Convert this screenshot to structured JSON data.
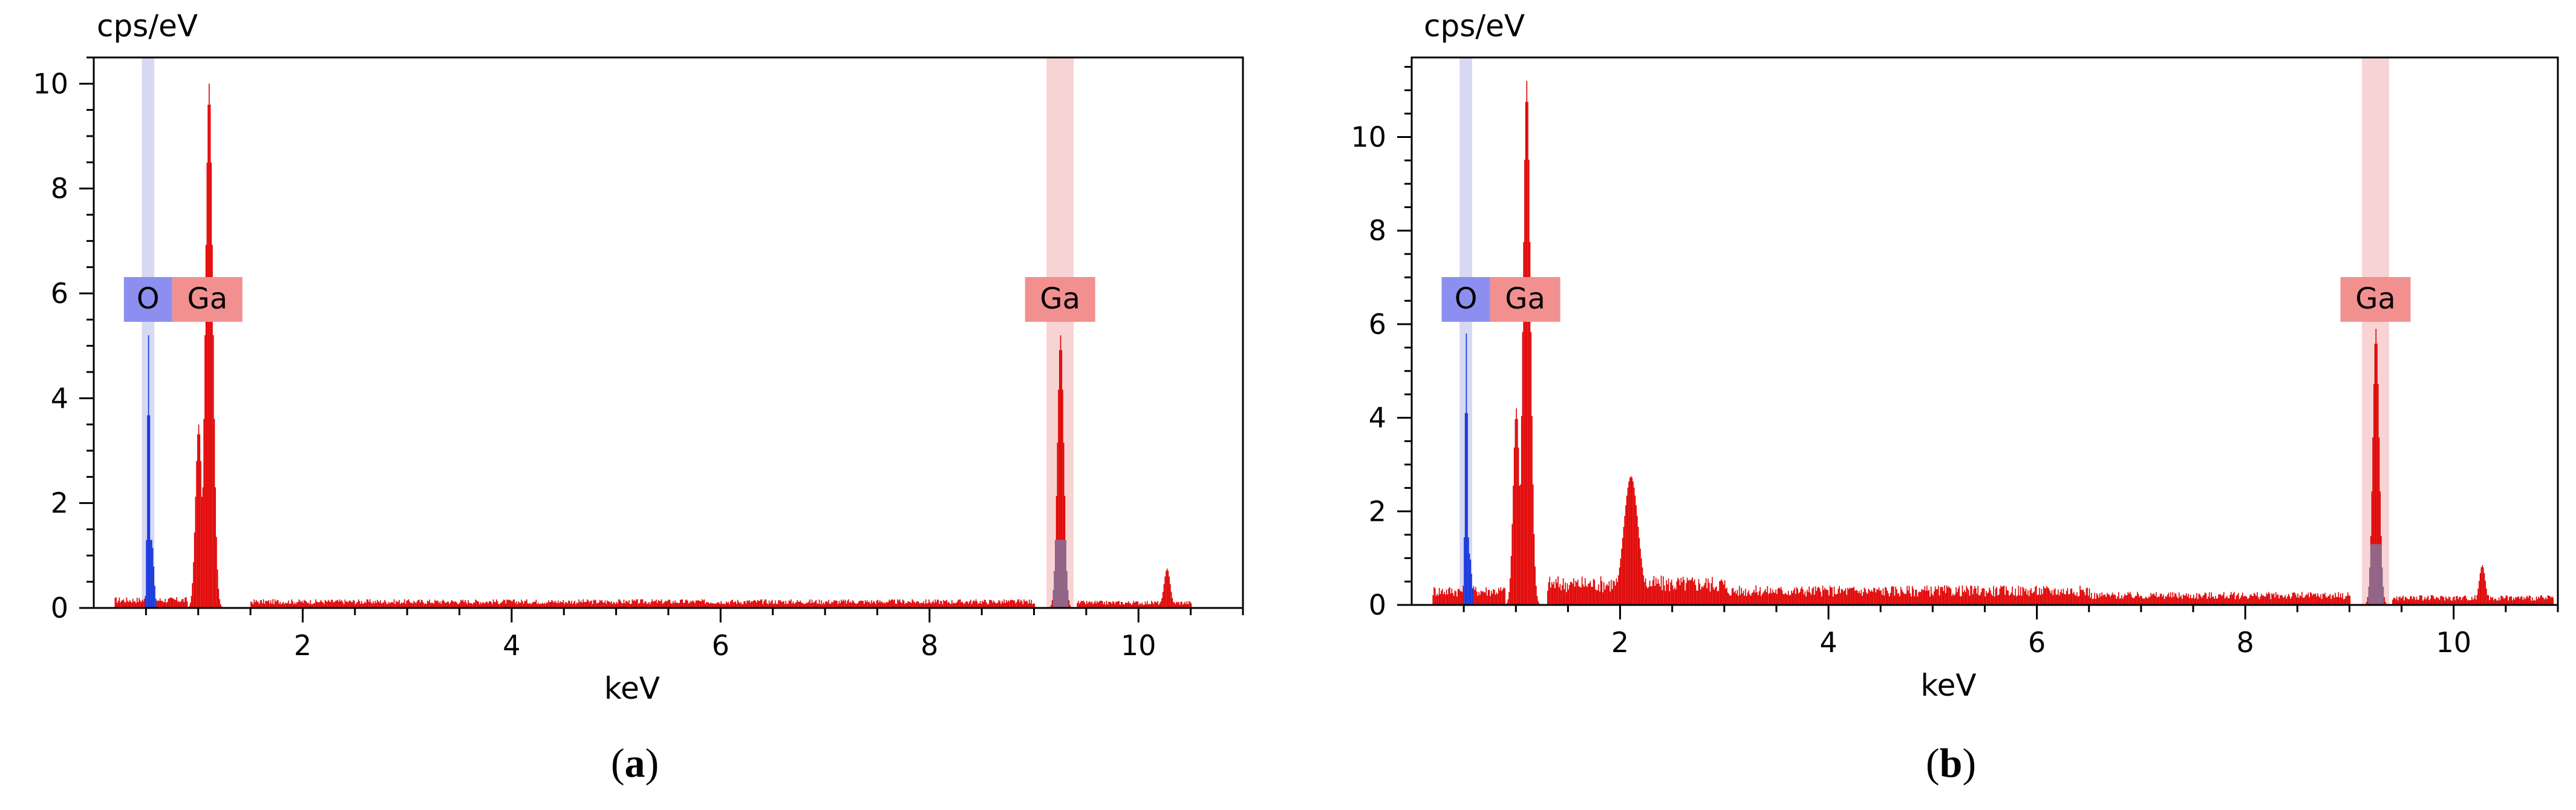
{
  "colors": {
    "sample": "#e00000",
    "overlap": "#7a7ba8",
    "oxygen": "#1133dd",
    "oxygen_label_bg": "#8d8ff0",
    "ga_label_bg": "#f29090",
    "o_band": "#d7d8f2",
    "ga_band": "#f8d3d3"
  },
  "chart_data": [
    {
      "type": "area",
      "panel": "a",
      "ylabel": "cps/eV",
      "xlabel": "keV",
      "caption": "(a)",
      "caption_letter": "a",
      "xlim": [
        0,
        11
      ],
      "ylim": [
        0,
        10.5
      ],
      "xticks": [
        2,
        4,
        6,
        8,
        10
      ],
      "yticks": [
        0,
        2,
        4,
        6,
        8,
        10
      ],
      "element_labels": [
        {
          "text": "O",
          "element": "O",
          "energy": 0.52
        },
        {
          "text": "Ga",
          "element": "Ga",
          "energy": 1.1
        },
        {
          "text": "Ga",
          "element": "Ga",
          "energy": 9.25
        }
      ],
      "bands": [
        {
          "element": "O",
          "from": 0.46,
          "to": 0.58
        },
        {
          "element": "Ga",
          "from": 9.12,
          "to": 9.38
        }
      ],
      "peaks": [
        {
          "center": 0.52,
          "height": 5.2,
          "width": 0.012,
          "element": "O"
        },
        {
          "center": 0.55,
          "height": 1.3,
          "width": 0.02,
          "element": "O"
        },
        {
          "center": 1.1,
          "height": 10.0,
          "width": 0.035,
          "element": "Ga"
        },
        {
          "center": 1.0,
          "height": 3.5,
          "width": 0.03,
          "element": "Ga"
        },
        {
          "center": 9.25,
          "height": 5.2,
          "width": 0.03,
          "element": "Ga"
        },
        {
          "center": 10.27,
          "height": 0.75,
          "width": 0.03,
          "element": "Ga"
        }
      ],
      "background": [
        {
          "from": 0.2,
          "to": 0.9,
          "level": 0.15
        },
        {
          "from": 1.5,
          "to": 9.0,
          "level": 0.12
        },
        {
          "from": 9.4,
          "to": 10.5,
          "level": 0.1
        }
      ]
    },
    {
      "type": "area",
      "panel": "b",
      "ylabel": "cps/eV",
      "xlabel": "keV",
      "caption": "(b)",
      "caption_letter": "b",
      "xlim": [
        0,
        11
      ],
      "ylim": [
        0,
        11.7
      ],
      "xticks": [
        2,
        4,
        6,
        8,
        10
      ],
      "yticks": [
        0,
        2,
        4,
        6,
        8,
        10
      ],
      "element_labels": [
        {
          "text": "O",
          "element": "O",
          "energy": 0.52
        },
        {
          "text": "Ga",
          "element": "Ga",
          "energy": 1.1
        },
        {
          "text": "Ga",
          "element": "Ga",
          "energy": 9.25
        }
      ],
      "bands": [
        {
          "element": "O",
          "from": 0.46,
          "to": 0.58
        },
        {
          "element": "Ga",
          "from": 9.12,
          "to": 9.38
        }
      ],
      "peaks": [
        {
          "center": 0.52,
          "height": 5.8,
          "width": 0.012,
          "element": "O"
        },
        {
          "center": 0.55,
          "height": 1.1,
          "width": 0.02,
          "element": "O"
        },
        {
          "center": 1.1,
          "height": 11.2,
          "width": 0.035,
          "element": "Ga"
        },
        {
          "center": 1.0,
          "height": 4.2,
          "width": 0.03,
          "element": "Ga"
        },
        {
          "center": 2.1,
          "height": 2.75,
          "width": 0.07,
          "element": "none"
        },
        {
          "center": 9.25,
          "height": 5.9,
          "width": 0.03,
          "element": "Ga"
        },
        {
          "center": 10.27,
          "height": 0.85,
          "width": 0.03,
          "element": "Ga"
        }
      ],
      "background": [
        {
          "from": 0.2,
          "to": 0.9,
          "level": 0.3
        },
        {
          "from": 1.3,
          "to": 3.0,
          "level": 0.45
        },
        {
          "from": 3.0,
          "to": 6.5,
          "level": 0.3
        },
        {
          "from": 6.5,
          "to": 9.0,
          "level": 0.2
        },
        {
          "from": 9.4,
          "to": 11.0,
          "level": 0.15
        }
      ]
    }
  ]
}
